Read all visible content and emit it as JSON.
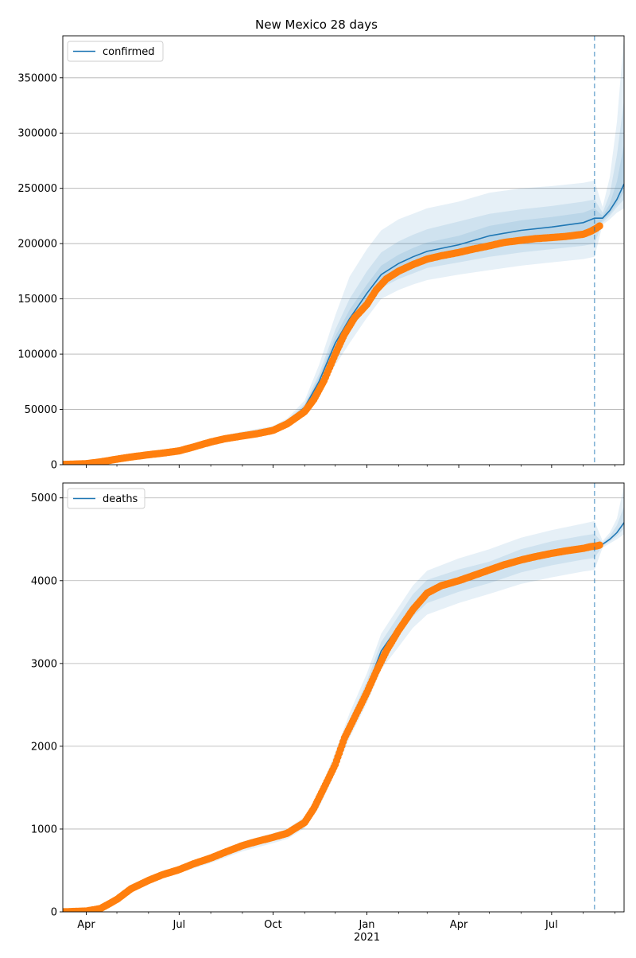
{
  "figure_title": "New Mexico 28 days",
  "colors": {
    "model_line": "#1f77b4",
    "band": "#1f77b4",
    "observed": "#ff7f0e",
    "grid": "#b0b0b0",
    "vline": "#1f77b4"
  },
  "chart_data": [
    {
      "type": "line",
      "name": "confirmed-panel",
      "legend": [
        "confirmed"
      ],
      "legend_position": "upper-left",
      "grid": "y",
      "xlim": [
        "2020-03-09",
        "2021-09-10"
      ],
      "ylim": [
        0,
        388000
      ],
      "yticks": [
        0,
        50000,
        100000,
        150000,
        200000,
        250000,
        300000,
        350000
      ],
      "ytick_labels": [
        "0",
        "50000",
        "100000",
        "150000",
        "200000",
        "250000",
        "300000",
        "350000"
      ],
      "forecast_start": "2021-08-12",
      "model": {
        "dates": [
          "2020-03-09",
          "2020-04-01",
          "2020-05-01",
          "2020-06-01",
          "2020-07-01",
          "2020-08-01",
          "2020-09-01",
          "2020-10-01",
          "2020-10-15",
          "2020-11-01",
          "2020-11-15",
          "2020-12-01",
          "2020-12-15",
          "2021-01-01",
          "2021-01-15",
          "2021-02-01",
          "2021-02-15",
          "2021-03-01",
          "2021-04-01",
          "2021-05-01",
          "2021-06-01",
          "2021-07-01",
          "2021-08-01",
          "2021-08-12",
          "2021-08-20",
          "2021-08-27",
          "2021-09-03",
          "2021-09-10"
        ],
        "median": [
          0,
          1500,
          6000,
          10000,
          14000,
          22000,
          27000,
          32000,
          38000,
          52000,
          75000,
          110000,
          132000,
          155000,
          172000,
          182000,
          188000,
          193000,
          199000,
          207000,
          212000,
          215000,
          219000,
          223000,
          223000,
          230000,
          240000,
          254000
        ],
        "bands": [
          {
            "lower": [
              0,
              1500,
              6000,
              10000,
              14000,
              21000,
              26000,
              30000,
              36000,
              47000,
              65000,
              90000,
              110000,
              133000,
              150000,
              158000,
              163000,
              167000,
              172000,
              176000,
              180000,
              183000,
              186000,
              188000,
              217000,
              222000,
              228000,
              232000
            ],
            "upper": [
              0,
              1500,
              6000,
              10000,
              15000,
              24000,
              30000,
              35000,
              42000,
              58000,
              90000,
              135000,
              170000,
              195000,
              212000,
              222000,
              227000,
              232000,
              238000,
              246000,
              250000,
              252000,
              255000,
              257000,
              233000,
              260000,
              310000,
              388000
            ]
          },
          {
            "lower": [
              0,
              1500,
              6000,
              10000,
              14000,
              21000,
              26500,
              31000,
              37000,
              49000,
              70000,
              100000,
              120000,
              143000,
              160000,
              168000,
              173000,
              178000,
              183000,
              188000,
              192000,
              195000,
              198000,
              200000,
              219000,
              225000,
              233000,
              240000
            ],
            "upper": [
              0,
              1500,
              6000,
              10000,
              14500,
              23000,
              28500,
              33500,
              40000,
              55000,
              82000,
              122000,
              150000,
              175000,
              192000,
              202000,
              208000,
              213000,
              220000,
              227000,
              231000,
              234000,
              238000,
              240000,
              228000,
              245000,
              280000,
              330000
            ]
          },
          {
            "lower": [
              0,
              1500,
              6000,
              10000,
              14000,
              21500,
              26800,
              31500,
              37500,
              50500,
              72000,
              105000,
              126000,
              149000,
              166000,
              175000,
              181000,
              186000,
              191000,
              198000,
              203000,
              206000,
              210000,
              213000,
              221000,
              227000,
              236000,
              247000
            ],
            "upper": [
              0,
              1500,
              6000,
              10000,
              14200,
              22500,
              27500,
              32800,
              39000,
              53500,
              79000,
              116000,
              140000,
              163000,
              180000,
              190000,
              196000,
              201000,
              207000,
              216000,
              221000,
              224000,
              228000,
              232000,
              225000,
              236000,
              256000,
              290000
            ]
          }
        ]
      },
      "observed": {
        "dates": [
          "2020-03-09",
          "2020-04-01",
          "2020-04-15",
          "2020-05-01",
          "2020-05-15",
          "2020-06-01",
          "2020-06-15",
          "2020-07-01",
          "2020-07-15",
          "2020-08-01",
          "2020-08-15",
          "2020-09-01",
          "2020-09-15",
          "2020-10-01",
          "2020-10-15",
          "2020-11-01",
          "2020-11-10",
          "2020-11-20",
          "2020-12-01",
          "2020-12-10",
          "2020-12-20",
          "2021-01-01",
          "2021-01-10",
          "2021-01-20",
          "2021-02-01",
          "2021-02-15",
          "2021-03-01",
          "2021-03-15",
          "2021-04-01",
          "2021-04-15",
          "2021-05-01",
          "2021-05-15",
          "2021-06-01",
          "2021-06-15",
          "2021-07-01",
          "2021-07-15",
          "2021-08-01",
          "2021-08-08",
          "2021-08-14",
          "2021-08-17"
        ],
        "values": [
          200,
          900,
          2500,
          5000,
          7000,
          9000,
          10500,
          12500,
          16000,
          20500,
          23500,
          26000,
          28000,
          31000,
          37000,
          48000,
          59000,
          76000,
          100000,
          118000,
          133000,
          145000,
          158000,
          168000,
          175000,
          181000,
          186000,
          189000,
          192000,
          195000,
          198000,
          201000,
          203000,
          204500,
          205500,
          206500,
          208500,
          211000,
          214000,
          216000
        ]
      }
    },
    {
      "type": "line",
      "name": "deaths-panel",
      "legend": [
        "deaths"
      ],
      "legend_position": "upper-left",
      "grid": "y",
      "xlim": [
        "2020-03-09",
        "2021-09-10"
      ],
      "ylim": [
        0,
        5180
      ],
      "yticks": [
        0,
        1000,
        2000,
        3000,
        4000,
        5000
      ],
      "ytick_labels": [
        "0",
        "1000",
        "2000",
        "3000",
        "4000",
        "5000"
      ],
      "forecast_start": "2021-08-12",
      "xtick_labels": [
        {
          "date": "2020-04-01",
          "label": "Apr"
        },
        {
          "date": "2020-07-01",
          "label": "Jul"
        },
        {
          "date": "2020-10-01",
          "label": "Oct"
        },
        {
          "date": "2021-01-01",
          "label": "Jan",
          "sublabel": "2021"
        },
        {
          "date": "2021-04-01",
          "label": "Apr"
        },
        {
          "date": "2021-07-01",
          "label": "Jul"
        }
      ],
      "xtick_minor": [
        "2020-05-01",
        "2020-06-01",
        "2020-08-01",
        "2020-09-01",
        "2020-11-01",
        "2020-12-01",
        "2021-02-01",
        "2021-03-01",
        "2021-05-01",
        "2021-06-01",
        "2021-08-01",
        "2021-09-01"
      ],
      "model": {
        "dates": [
          "2020-03-09",
          "2020-04-01",
          "2020-04-15",
          "2020-05-01",
          "2020-05-15",
          "2020-06-01",
          "2020-07-01",
          "2020-08-01",
          "2020-09-01",
          "2020-10-01",
          "2020-10-15",
          "2020-11-01",
          "2020-11-15",
          "2020-12-01",
          "2020-12-15",
          "2021-01-01",
          "2021-01-15",
          "2021-02-01",
          "2021-02-15",
          "2021-03-01",
          "2021-04-01",
          "2021-05-01",
          "2021-06-01",
          "2021-07-01",
          "2021-08-01",
          "2021-08-12",
          "2021-08-20",
          "2021-08-27",
          "2021-09-03",
          "2021-09-10"
        ],
        "median": [
          0,
          20,
          50,
          170,
          280,
          400,
          510,
          640,
          790,
          890,
          940,
          1080,
          1350,
          1800,
          2250,
          2700,
          3150,
          3450,
          3700,
          3870,
          4000,
          4100,
          4240,
          4330,
          4400,
          4420,
          4440,
          4500,
          4580,
          4700
        ],
        "bands": [
          {
            "lower": [
              0,
              20,
              50,
              160,
              260,
              370,
              470,
              590,
              730,
              830,
              880,
              1010,
              1260,
              1680,
              2100,
              2520,
              2930,
              3200,
              3430,
              3590,
              3730,
              3840,
              3960,
              4040,
              4110,
              4130,
              4400,
              4450,
              4500,
              4560
            ],
            "upper": [
              0,
              20,
              50,
              180,
              300,
              430,
              550,
              690,
              850,
              950,
              1000,
              1150,
              1440,
              1930,
              2400,
              2880,
              3360,
              3680,
              3940,
              4120,
              4270,
              4380,
              4520,
              4610,
              4690,
              4720,
              4480,
              4580,
              4750,
              5150
            ]
          },
          {
            "lower": [
              0,
              20,
              50,
              165,
              270,
              385,
              490,
              615,
              760,
              860,
              910,
              1045,
              1305,
              1740,
              2175,
              2610,
              3040,
              3325,
              3565,
              3730,
              3865,
              3970,
              4100,
              4185,
              4255,
              4275,
              4420,
              4475,
              4540,
              4630
            ],
            "upper": [
              0,
              20,
              50,
              175,
              290,
              415,
              530,
              665,
              820,
              920,
              970,
              1115,
              1395,
              1860,
              2325,
              2790,
              3260,
              3575,
              3835,
              4010,
              4135,
              4230,
              4380,
              4475,
              4545,
              4565,
              4460,
              4540,
              4670,
              4900
            ]
          }
        ]
      },
      "observed": {
        "dates": [
          "2020-03-09",
          "2020-04-01",
          "2020-04-15",
          "2020-05-01",
          "2020-05-15",
          "2020-06-01",
          "2020-06-15",
          "2020-07-01",
          "2020-07-15",
          "2020-08-01",
          "2020-08-15",
          "2020-09-01",
          "2020-09-15",
          "2020-10-01",
          "2020-10-15",
          "2020-11-01",
          "2020-11-10",
          "2020-11-20",
          "2020-12-01",
          "2020-12-10",
          "2020-12-20",
          "2021-01-01",
          "2021-01-10",
          "2021-01-20",
          "2021-02-01",
          "2021-02-15",
          "2021-03-01",
          "2021-03-15",
          "2021-04-01",
          "2021-04-15",
          "2021-05-01",
          "2021-05-15",
          "2021-06-01",
          "2021-06-15",
          "2021-07-01",
          "2021-07-15",
          "2021-08-01",
          "2021-08-08",
          "2021-08-14",
          "2021-08-17"
        ],
        "values": [
          0,
          10,
          40,
          150,
          280,
          380,
          450,
          510,
          580,
          650,
          720,
          800,
          850,
          900,
          950,
          1080,
          1250,
          1500,
          1780,
          2100,
          2350,
          2650,
          2900,
          3150,
          3400,
          3650,
          3850,
          3940,
          4000,
          4060,
          4130,
          4190,
          4250,
          4290,
          4330,
          4360,
          4390,
          4410,
          4420,
          4430
        ]
      }
    }
  ]
}
